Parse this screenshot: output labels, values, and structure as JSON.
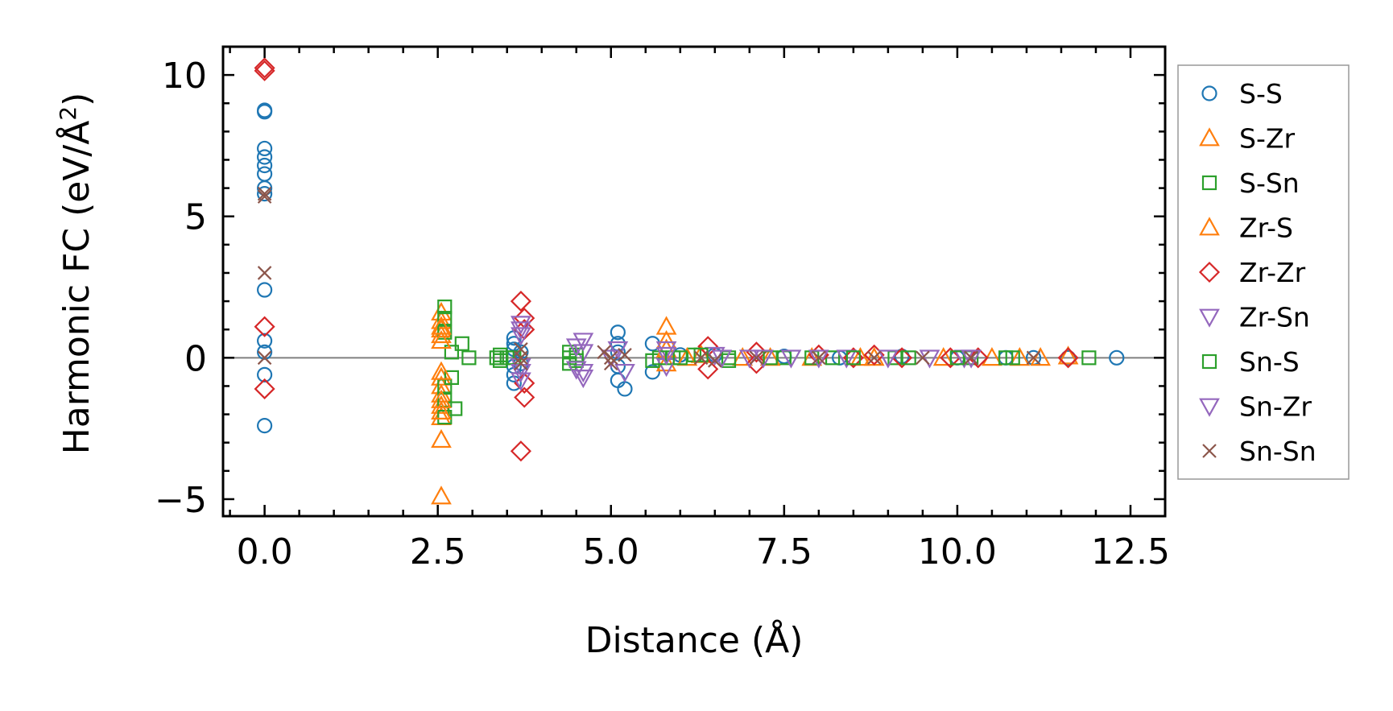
{
  "chart_data": {
    "type": "scatter",
    "xlabel": "Distance (Å)",
    "ylabel_main": "Harmonic FC (eV/Å",
    "ylabel_sup": "2",
    "ylabel_close": ")",
    "xlim": [
      -0.6,
      13.0
    ],
    "ylim": [
      -5.6,
      11.0
    ],
    "x_ticks": [
      {
        "value": 0.0,
        "label": "0.0"
      },
      {
        "value": 2.5,
        "label": "2.5"
      },
      {
        "value": 5.0,
        "label": "5.0"
      },
      {
        "value": 7.5,
        "label": "7.5"
      },
      {
        "value": 10.0,
        "label": "10.0"
      },
      {
        "value": 12.5,
        "label": "12.5"
      }
    ],
    "y_ticks": [
      {
        "value": 10,
        "label": "10"
      },
      {
        "value": 5,
        "label": "5"
      },
      {
        "value": 0,
        "label": "0"
      },
      {
        "value": -5,
        "label": "−5"
      }
    ],
    "x_minor_step": 0.5,
    "y_minor_step": 1,
    "zero_line": 0,
    "legend_position": "outside-right",
    "series": [
      {
        "name": "S-S",
        "marker": "circle",
        "color": "#1f77b4",
        "points": [
          [
            0,
            8.75
          ],
          [
            0,
            8.7
          ],
          [
            0,
            7.4
          ],
          [
            0,
            7.1
          ],
          [
            0,
            6.8
          ],
          [
            0,
            6.5
          ],
          [
            0,
            6.0
          ],
          [
            0,
            5.8
          ],
          [
            0,
            2.4
          ],
          [
            0,
            0.6
          ],
          [
            0,
            0.2
          ],
          [
            0,
            -0.6
          ],
          [
            0,
            -2.4
          ],
          [
            3.6,
            0.7
          ],
          [
            3.6,
            0.5
          ],
          [
            3.6,
            0.3
          ],
          [
            3.6,
            -0.3
          ],
          [
            3.6,
            -0.6
          ],
          [
            3.6,
            -0.9
          ],
          [
            3.7,
            0.2
          ],
          [
            3.7,
            -0.2
          ],
          [
            5.1,
            0.9
          ],
          [
            5.1,
            0.5
          ],
          [
            5.1,
            0.2
          ],
          [
            5.1,
            -0.3
          ],
          [
            5.1,
            -0.8
          ],
          [
            5.2,
            -1.1
          ],
          [
            5.6,
            0.5
          ],
          [
            5.6,
            -0.5
          ],
          [
            6.0,
            0.1
          ],
          [
            6.5,
            0.1
          ],
          [
            7.5,
            0.05
          ],
          [
            8.3,
            0.0
          ],
          [
            9.2,
            0.05
          ],
          [
            10.0,
            0.0
          ],
          [
            10.7,
            0.0
          ],
          [
            11.1,
            0.0
          ],
          [
            11.6,
            0.0
          ],
          [
            12.3,
            0.0
          ]
        ]
      },
      {
        "name": "S-Zr",
        "marker": "triangle-up",
        "color": "#ff7f0e",
        "points": [
          [
            2.55,
            1.6
          ],
          [
            2.55,
            1.3
          ],
          [
            2.55,
            1.0
          ],
          [
            2.55,
            0.8
          ],
          [
            2.55,
            -0.7
          ],
          [
            2.55,
            -1.0
          ],
          [
            2.55,
            -1.3
          ],
          [
            2.55,
            -1.7
          ],
          [
            2.55,
            -2.1
          ],
          [
            2.55,
            -2.9
          ],
          [
            2.55,
            -4.9
          ],
          [
            5.8,
            1.1
          ],
          [
            5.8,
            0.6
          ],
          [
            5.8,
            -0.2
          ],
          [
            6.3,
            0.1
          ],
          [
            6.9,
            0.0
          ],
          [
            7.9,
            0.0
          ],
          [
            8.6,
            0.0
          ],
          [
            9.8,
            0.0
          ],
          [
            10.9,
            0.0
          ],
          [
            11.6,
            0.05
          ]
        ]
      },
      {
        "name": "S-Sn",
        "marker": "square",
        "color": "#2ca02c",
        "points": [
          [
            2.6,
            1.8
          ],
          [
            2.6,
            1.4
          ],
          [
            2.6,
            0.9
          ],
          [
            2.6,
            -1.0
          ],
          [
            2.6,
            -1.5
          ],
          [
            2.6,
            -2.1
          ],
          [
            2.7,
            0.2
          ],
          [
            2.7,
            -0.7
          ],
          [
            2.75,
            -1.8
          ],
          [
            2.85,
            0.5
          ],
          [
            2.95,
            0.0
          ],
          [
            3.35,
            0.0
          ],
          [
            3.5,
            0.0
          ],
          [
            4.4,
            0.2
          ],
          [
            4.4,
            -0.2
          ],
          [
            4.5,
            0.1
          ],
          [
            5.6,
            -0.1
          ],
          [
            5.9,
            0.0
          ],
          [
            6.2,
            0.1
          ],
          [
            6.7,
            0.0
          ],
          [
            7.5,
            0.0
          ],
          [
            8.2,
            0.0
          ],
          [
            9.1,
            0.0
          ],
          [
            10.2,
            0.0
          ],
          [
            10.8,
            0.0
          ],
          [
            11.9,
            0.0
          ]
        ]
      },
      {
        "name": "Zr-S",
        "marker": "triangle-up",
        "color": "#ff7f0e",
        "points": [
          [
            2.55,
            1.1
          ],
          [
            2.55,
            0.6
          ],
          [
            2.55,
            -0.5
          ],
          [
            2.55,
            -1.5
          ],
          [
            2.55,
            -1.9
          ],
          [
            5.8,
            0.3
          ],
          [
            6.1,
            0.0
          ],
          [
            7.3,
            0.0
          ],
          [
            8.8,
            0.0
          ],
          [
            10.5,
            0.0
          ],
          [
            11.2,
            0.0
          ]
        ]
      },
      {
        "name": "Zr-Zr",
        "marker": "diamond",
        "color": "#d62728",
        "points": [
          [
            0,
            10.25
          ],
          [
            0,
            10.15
          ],
          [
            0,
            1.1
          ],
          [
            0,
            -1.1
          ],
          [
            3.7,
            2.0
          ],
          [
            3.75,
            1.4
          ],
          [
            3.75,
            1.0
          ],
          [
            3.75,
            -0.9
          ],
          [
            3.75,
            -1.4
          ],
          [
            3.7,
            -3.3
          ],
          [
            6.4,
            0.4
          ],
          [
            6.4,
            -0.4
          ],
          [
            7.1,
            0.2
          ],
          [
            7.1,
            -0.2
          ],
          [
            8.0,
            0.1
          ],
          [
            8.5,
            0.0
          ],
          [
            8.8,
            0.1
          ],
          [
            9.2,
            0.0
          ],
          [
            9.9,
            0.0
          ],
          [
            10.3,
            0.0
          ],
          [
            11.6,
            0.0
          ]
        ]
      },
      {
        "name": "Zr-Sn",
        "marker": "triangle-down",
        "color": "#9467bd",
        "points": [
          [
            3.7,
            1.2
          ],
          [
            3.7,
            0.8
          ],
          [
            3.7,
            -0.3
          ],
          [
            3.7,
            -0.8
          ],
          [
            4.6,
            0.6
          ],
          [
            4.6,
            0.2
          ],
          [
            4.6,
            -0.5
          ],
          [
            4.6,
            -0.7
          ],
          [
            5.1,
            0.3
          ],
          [
            5.2,
            -0.5
          ],
          [
            5.8,
            0.3
          ],
          [
            5.8,
            -0.3
          ],
          [
            6.5,
            0.1
          ],
          [
            7.0,
            0.0
          ],
          [
            7.6,
            0.0
          ],
          [
            8.4,
            0.0
          ],
          [
            9.6,
            0.0
          ],
          [
            10.1,
            0.0
          ]
        ]
      },
      {
        "name": "Sn-S",
        "marker": "square",
        "color": "#2ca02c",
        "points": [
          [
            3.4,
            0.1
          ],
          [
            3.4,
            -0.1
          ],
          [
            3.6,
            0.0
          ],
          [
            4.4,
            0.0
          ],
          [
            4.5,
            -0.1
          ],
          [
            5.7,
            0.0
          ],
          [
            6.0,
            0.0
          ],
          [
            6.3,
            0.1
          ],
          [
            6.7,
            -0.1
          ],
          [
            7.3,
            0.0
          ],
          [
            7.9,
            0.0
          ],
          [
            8.5,
            0.0
          ],
          [
            9.3,
            0.0
          ],
          [
            10.0,
            0.0
          ],
          [
            10.7,
            0.0
          ]
        ]
      },
      {
        "name": "Sn-Zr",
        "marker": "triangle-down",
        "color": "#9467bd",
        "points": [
          [
            3.7,
            1.0
          ],
          [
            3.7,
            -0.5
          ],
          [
            4.5,
            0.4
          ],
          [
            4.5,
            -0.4
          ],
          [
            5.0,
            0.0
          ],
          [
            5.8,
            0.1
          ],
          [
            6.6,
            0.0
          ],
          [
            7.2,
            0.0
          ],
          [
            8.0,
            0.0
          ],
          [
            9.0,
            0.0
          ],
          [
            10.2,
            0.0
          ]
        ]
      },
      {
        "name": "Sn-Sn",
        "marker": "x",
        "color": "#8c564b",
        "points": [
          [
            0,
            5.8
          ],
          [
            0,
            5.7
          ],
          [
            0,
            3.0
          ],
          [
            0,
            0.0
          ],
          [
            3.7,
            0.3
          ],
          [
            3.7,
            0.0
          ],
          [
            3.7,
            -0.2
          ],
          [
            4.9,
            0.2
          ],
          [
            5.0,
            0.0
          ],
          [
            5.0,
            -0.2
          ],
          [
            5.2,
            0.1
          ],
          [
            6.3,
            0.0
          ],
          [
            6.5,
            -0.1
          ],
          [
            7.1,
            0.0
          ],
          [
            8.0,
            0.0
          ],
          [
            8.8,
            0.0
          ],
          [
            9.5,
            0.0
          ],
          [
            10.2,
            0.0
          ],
          [
            11.1,
            0.0
          ]
        ]
      }
    ]
  }
}
